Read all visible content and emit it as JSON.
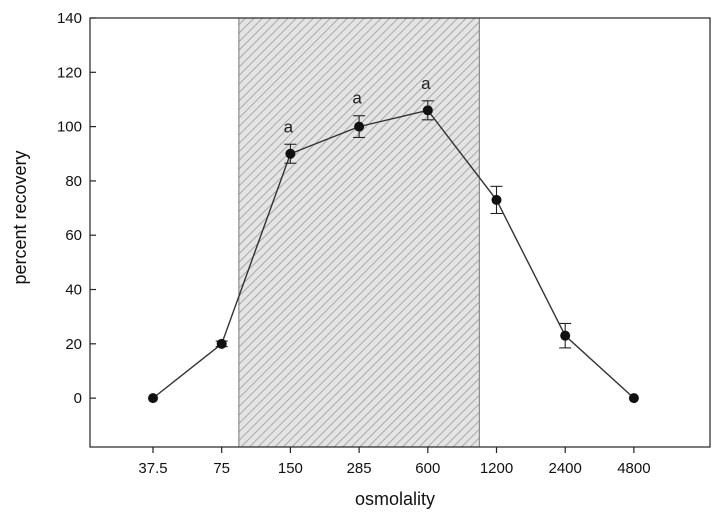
{
  "chart_data": {
    "type": "line",
    "xlabel": "osmolality",
    "ylabel": "percent recovery",
    "categories": [
      "37.5",
      "75",
      "150",
      "285",
      "600",
      "1200",
      "2400",
      "4800"
    ],
    "series": [
      {
        "values": [
          0,
          20,
          90,
          100,
          106,
          73,
          23,
          0
        ],
        "errors": [
          0,
          1,
          3.5,
          4,
          3.5,
          5,
          4.5,
          0
        ]
      }
    ],
    "ylim": [
      -18,
      140
    ],
    "yticks": [
      0,
      20,
      40,
      60,
      80,
      100,
      120,
      140
    ],
    "shaded_region": {
      "from_category": "150",
      "to_category": "600",
      "extend": 0.75,
      "pattern": "diagonal-hatch"
    },
    "annotations": [
      {
        "category": "150",
        "text": "a"
      },
      {
        "category": "285",
        "text": "a"
      },
      {
        "category": "600",
        "text": "a"
      }
    ],
    "grid": false,
    "colors": {
      "line": "#333333",
      "marker": "#111111",
      "hatch": "#9a9a9a",
      "shade": "#e4e4e4"
    }
  }
}
